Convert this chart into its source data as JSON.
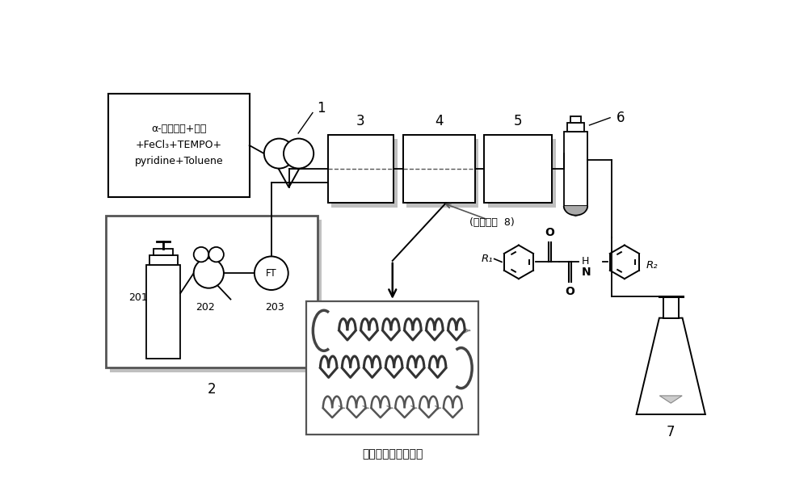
{
  "bg_color": "#ffffff",
  "box_text": "α-甲基苄醇+胺类\n+FeCl₃+TEMPO+\npyridine+Toluene",
  "label1": "1",
  "label2": "2",
  "label3": "3",
  "label4": "4",
  "label5": "5",
  "label6": "6",
  "label7": "7",
  "label201": "201",
  "label202": "202",
  "label203": "203",
  "label_FT": "FT",
  "label_react_plates": "(反应板数  8)",
  "label_corning": "康宁反应器内部结构"
}
